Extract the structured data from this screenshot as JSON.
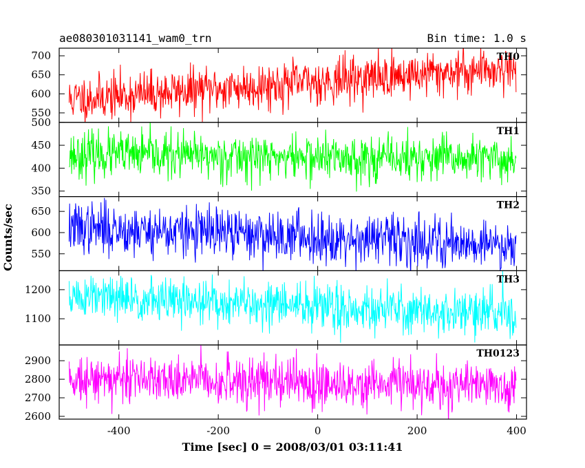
{
  "header": {
    "title": "ae080301031141_wam0_trn",
    "bin_time": "Bin time: 1.0 s"
  },
  "chart_data": {
    "type": "line",
    "xlabel": "Time [sec] 0 = 2008/03/01 03:11:41",
    "ylabel": "Counts/sec",
    "xlim": [
      -520,
      420
    ],
    "xticks": [
      -400,
      -200,
      0,
      200,
      400
    ],
    "x_start": -500,
    "x_end": 399,
    "bin_seconds": 1.0,
    "panels": [
      {
        "name": "TH0",
        "color": "#ff0000",
        "ylim": [
          525,
          720
        ],
        "yticks": [
          550,
          600,
          650,
          700
        ],
        "trend_start": 585,
        "trend_end": 670,
        "noise": 30,
        "seed": 11
      },
      {
        "name": "TH1",
        "color": "#00ff00",
        "ylim": [
          338,
          500
        ],
        "yticks": [
          350,
          400,
          450,
          500
        ],
        "trend_start": 430,
        "trend_end": 418,
        "noise": 25,
        "seed": 23
      },
      {
        "name": "TH2",
        "color": "#0000ff",
        "ylim": [
          510,
          685
        ],
        "yticks": [
          550,
          600,
          650
        ],
        "trend_start": 612,
        "trend_end": 572,
        "noise": 30,
        "seed": 37
      },
      {
        "name": "TH3",
        "color": "#00ffff",
        "ylim": [
          1010,
          1265
        ],
        "yticks": [
          1100,
          1200
        ],
        "trend_start": 1175,
        "trend_end": 1115,
        "noise": 40,
        "seed": 51
      },
      {
        "name": "TH0123",
        "color": "#ff00ff",
        "ylim": [
          2585,
          2985
        ],
        "yticks": [
          2600,
          2700,
          2800,
          2900
        ],
        "trend_start": 2810,
        "trend_end": 2760,
        "noise": 65,
        "seed": 73
      }
    ]
  }
}
